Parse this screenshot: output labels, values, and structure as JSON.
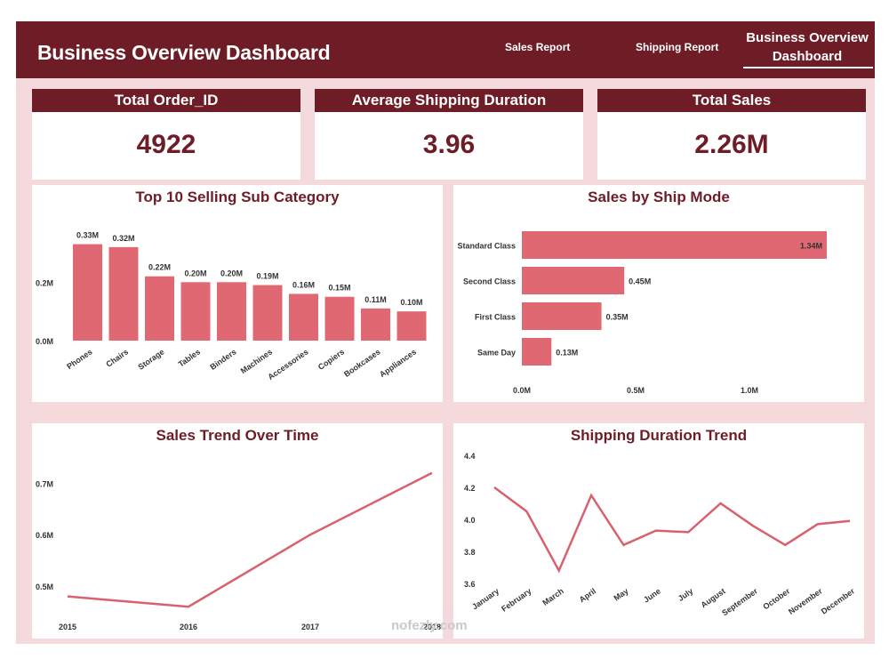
{
  "header": {
    "title": "Business Overview Dashboard",
    "nav": [
      "Sales Report",
      "Shipping Report"
    ],
    "active_line1": "Business Overview",
    "active_line2": "Dashboard"
  },
  "kpis": [
    {
      "label": "Total Order_ID",
      "value": "4922"
    },
    {
      "label": "Average Shipping Duration",
      "value": "3.96"
    },
    {
      "label": "Total Sales",
      "value": "2.26M"
    }
  ],
  "colors": {
    "accent": "#6e1d27",
    "bar": "#e06873",
    "line": "#d9606d",
    "background": "#f4dadc"
  },
  "chart_data": [
    {
      "type": "bar",
      "title": "Top 10 Selling Sub Category",
      "categories": [
        "Phones",
        "Chairs",
        "Storage",
        "Tables",
        "Binders",
        "Machines",
        "Accessories",
        "Copiers",
        "Bookcases",
        "Appliances"
      ],
      "values": [
        0.33,
        0.32,
        0.22,
        0.2,
        0.2,
        0.19,
        0.16,
        0.15,
        0.11,
        0.1
      ],
      "data_labels": [
        "0.33M",
        "0.32M",
        "0.22M",
        "0.20M",
        "0.20M",
        "0.19M",
        "0.16M",
        "0.15M",
        "0.11M",
        "0.10M"
      ],
      "ytick_labels": [
        "0.0M",
        "0.2M"
      ],
      "yticks": [
        0,
        0.2
      ],
      "ylim": [
        0,
        0.35
      ]
    },
    {
      "type": "bar",
      "orientation": "horizontal",
      "title": "Sales by Ship Mode",
      "categories": [
        "Standard Class",
        "Second Class",
        "First Class",
        "Same Day"
      ],
      "values": [
        1.34,
        0.45,
        0.35,
        0.13
      ],
      "data_labels": [
        "1.34M",
        "0.45M",
        "0.35M",
        "0.13M"
      ],
      "xtick_labels": [
        "0.0M",
        "0.5M",
        "1.0M"
      ],
      "xticks": [
        0,
        0.5,
        1.0
      ],
      "xlim": [
        0,
        1.34
      ]
    },
    {
      "type": "line",
      "title": "Sales Trend Over Time",
      "x": [
        "2015",
        "2016",
        "2017",
        "2018"
      ],
      "y": [
        0.48,
        0.46,
        0.6,
        0.72
      ],
      "ytick_labels": [
        "0.5M",
        "0.6M",
        "0.7M"
      ],
      "yticks": [
        0.5,
        0.6,
        0.7
      ],
      "ylim": [
        0.45,
        0.73
      ]
    },
    {
      "type": "line",
      "title": "Shipping Duration Trend",
      "x": [
        "January",
        "February",
        "March",
        "April",
        "May",
        "June",
        "July",
        "August",
        "September",
        "October",
        "November",
        "December"
      ],
      "y": [
        4.2,
        4.05,
        3.68,
        4.15,
        3.84,
        3.93,
        3.92,
        4.1,
        3.96,
        3.84,
        3.97,
        3.99
      ],
      "ytick_labels": [
        "3.6",
        "3.8",
        "4.0",
        "4.2",
        "4.4"
      ],
      "yticks": [
        3.6,
        3.8,
        4.0,
        4.2,
        4.4
      ],
      "ylim": [
        3.6,
        4.4
      ]
    }
  ],
  "watermark": "nofezly.com"
}
